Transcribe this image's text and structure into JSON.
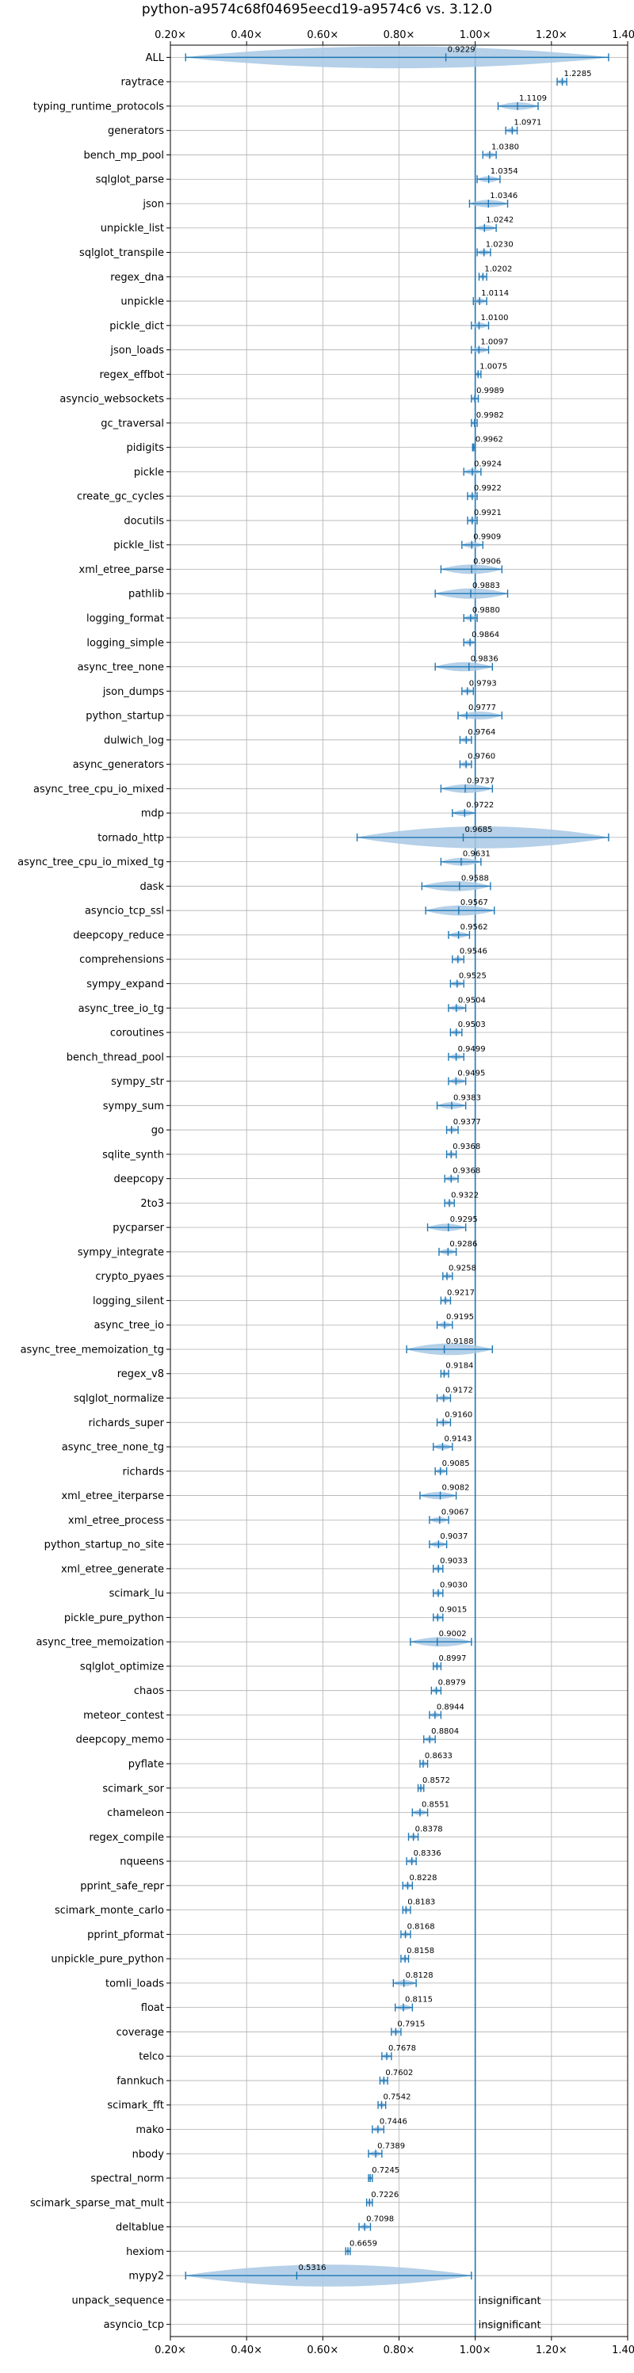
{
  "chart_data": {
    "type": "violin",
    "title": "python-a9574c68f04695eecd19-a9574c6 vs. 3.12.0",
    "xlim": [
      0.2,
      1.4
    ],
    "xticks": [
      0.2,
      0.4,
      0.6,
      0.8,
      1.0,
      1.2,
      1.4
    ],
    "xtick_labels": [
      "0.20×",
      "0.40×",
      "0.60×",
      "0.80×",
      "1.00×",
      "1.20×",
      "1.40×"
    ],
    "xtick_labels_top": [
      "0.20×",
      "0.40×",
      "0.60×",
      "0.80×",
      "1.00×",
      "1.20×",
      "1.40×"
    ],
    "reference_line": 1.0,
    "grid": true,
    "color": "#1f77b4",
    "fill_color": "#a8c8e4",
    "benchmarks": [
      {
        "name": "ALL",
        "median": 0.9229,
        "label": "0.9229",
        "min": 0.24,
        "max": 1.35
      },
      {
        "name": "raytrace",
        "median": 1.2285,
        "label": "1.2285",
        "min": 1.215,
        "max": 1.24
      },
      {
        "name": "typing_runtime_protocols",
        "median": 1.1109,
        "label": "1.1109",
        "min": 1.06,
        "max": 1.165
      },
      {
        "name": "generators",
        "median": 1.0971,
        "label": "1.0971",
        "min": 1.08,
        "max": 1.11
      },
      {
        "name": "bench_mp_pool",
        "median": 1.038,
        "label": "1.0380",
        "min": 1.02,
        "max": 1.055
      },
      {
        "name": "sqlglot_parse",
        "median": 1.0354,
        "label": "1.0354",
        "min": 1.005,
        "max": 1.065
      },
      {
        "name": "json",
        "median": 1.0346,
        "label": "1.0346",
        "min": 0.985,
        "max": 1.085
      },
      {
        "name": "unpickle_list",
        "median": 1.0242,
        "label": "1.0242",
        "min": 1.0,
        "max": 1.055
      },
      {
        "name": "sqlglot_transpile",
        "median": 1.023,
        "label": "1.0230",
        "min": 1.005,
        "max": 1.04
      },
      {
        "name": "regex_dna",
        "median": 1.0202,
        "label": "1.0202",
        "min": 1.01,
        "max": 1.03
      },
      {
        "name": "unpickle",
        "median": 1.0114,
        "label": "1.0114",
        "min": 0.995,
        "max": 1.03
      },
      {
        "name": "pickle_dict",
        "median": 1.01,
        "label": "1.0100",
        "min": 0.99,
        "max": 1.035
      },
      {
        "name": "json_loads",
        "median": 1.0097,
        "label": "1.0097",
        "min": 0.99,
        "max": 1.035
      },
      {
        "name": "regex_effbot",
        "median": 1.0075,
        "label": "1.0075",
        "min": 1.0,
        "max": 1.015
      },
      {
        "name": "asyncio_websockets",
        "median": 0.9989,
        "label": "0.9989",
        "min": 0.99,
        "max": 1.008
      },
      {
        "name": "gc_traversal",
        "median": 0.9982,
        "label": "0.9982",
        "min": 0.99,
        "max": 1.005
      },
      {
        "name": "pidigits",
        "median": 0.9962,
        "label": "0.9962",
        "min": 0.993,
        "max": 1.0
      },
      {
        "name": "pickle",
        "median": 0.9924,
        "label": "0.9924",
        "min": 0.97,
        "max": 1.015
      },
      {
        "name": "create_gc_cycles",
        "median": 0.9922,
        "label": "0.9922",
        "min": 0.98,
        "max": 1.005
      },
      {
        "name": "docutils",
        "median": 0.9921,
        "label": "0.9921",
        "min": 0.98,
        "max": 1.005
      },
      {
        "name": "pickle_list",
        "median": 0.9909,
        "label": "0.9909",
        "min": 0.965,
        "max": 1.02
      },
      {
        "name": "xml_etree_parse",
        "median": 0.9906,
        "label": "0.9906",
        "min": 0.91,
        "max": 1.07
      },
      {
        "name": "pathlib",
        "median": 0.9883,
        "label": "0.9883",
        "min": 0.895,
        "max": 1.085
      },
      {
        "name": "logging_format",
        "median": 0.988,
        "label": "0.9880",
        "min": 0.97,
        "max": 1.005
      },
      {
        "name": "logging_simple",
        "median": 0.9864,
        "label": "0.9864",
        "min": 0.97,
        "max": 1.0
      },
      {
        "name": "async_tree_none",
        "median": 0.9836,
        "label": "0.9836",
        "min": 0.895,
        "max": 1.045
      },
      {
        "name": "json_dumps",
        "median": 0.9793,
        "label": "0.9793",
        "min": 0.965,
        "max": 0.995
      },
      {
        "name": "python_startup",
        "median": 0.9777,
        "label": "0.9777",
        "min": 0.955,
        "max": 1.07
      },
      {
        "name": "dulwich_log",
        "median": 0.9764,
        "label": "0.9764",
        "min": 0.96,
        "max": 0.99
      },
      {
        "name": "async_generators",
        "median": 0.976,
        "label": "0.9760",
        "min": 0.96,
        "max": 0.99
      },
      {
        "name": "async_tree_cpu_io_mixed",
        "median": 0.9737,
        "label": "0.9737",
        "min": 0.91,
        "max": 1.045
      },
      {
        "name": "mdp",
        "median": 0.9722,
        "label": "0.9722",
        "min": 0.94,
        "max": 1.0
      },
      {
        "name": "tornado_http",
        "median": 0.9685,
        "label": "0.9685",
        "min": 0.69,
        "max": 1.35
      },
      {
        "name": "async_tree_cpu_io_mixed_tg",
        "median": 0.9631,
        "label": "0.9631",
        "min": 0.91,
        "max": 1.015
      },
      {
        "name": "dask",
        "median": 0.9588,
        "label": "0.9588",
        "min": 0.86,
        "max": 1.04
      },
      {
        "name": "asyncio_tcp_ssl",
        "median": 0.9567,
        "label": "0.9567",
        "min": 0.87,
        "max": 1.05
      },
      {
        "name": "deepcopy_reduce",
        "median": 0.9562,
        "label": "0.9562",
        "min": 0.93,
        "max": 0.985
      },
      {
        "name": "comprehensions",
        "median": 0.9546,
        "label": "0.9546",
        "min": 0.94,
        "max": 0.97
      },
      {
        "name": "sympy_expand",
        "median": 0.9525,
        "label": "0.9525",
        "min": 0.935,
        "max": 0.97
      },
      {
        "name": "async_tree_io_tg",
        "median": 0.9504,
        "label": "0.9504",
        "min": 0.93,
        "max": 0.975
      },
      {
        "name": "coroutines",
        "median": 0.9503,
        "label": "0.9503",
        "min": 0.935,
        "max": 0.965
      },
      {
        "name": "bench_thread_pool",
        "median": 0.9499,
        "label": "0.9499",
        "min": 0.93,
        "max": 0.97
      },
      {
        "name": "sympy_str",
        "median": 0.9495,
        "label": "0.9495",
        "min": 0.93,
        "max": 0.975
      },
      {
        "name": "sympy_sum",
        "median": 0.9383,
        "label": "0.9383",
        "min": 0.9,
        "max": 0.975
      },
      {
        "name": "go",
        "median": 0.9377,
        "label": "0.9377",
        "min": 0.925,
        "max": 0.955
      },
      {
        "name": "sqlite_synth",
        "median": 0.9368,
        "label": "0.9368",
        "min": 0.925,
        "max": 0.95
      },
      {
        "name": "deepcopy",
        "median": 0.9368,
        "label": "0.9368",
        "min": 0.92,
        "max": 0.955
      },
      {
        "name": "2to3",
        "median": 0.9322,
        "label": "0.9322",
        "min": 0.92,
        "max": 0.945
      },
      {
        "name": "pycparser",
        "median": 0.9295,
        "label": "0.9295",
        "min": 0.875,
        "max": 0.975
      },
      {
        "name": "sympy_integrate",
        "median": 0.9286,
        "label": "0.9286",
        "min": 0.905,
        "max": 0.95
      },
      {
        "name": "crypto_pyaes",
        "median": 0.9258,
        "label": "0.9258",
        "min": 0.915,
        "max": 0.94
      },
      {
        "name": "logging_silent",
        "median": 0.9217,
        "label": "0.9217",
        "min": 0.91,
        "max": 0.935
      },
      {
        "name": "async_tree_io",
        "median": 0.9195,
        "label": "0.9195",
        "min": 0.9,
        "max": 0.94
      },
      {
        "name": "async_tree_memoization_tg",
        "median": 0.9188,
        "label": "0.9188",
        "min": 0.82,
        "max": 1.045
      },
      {
        "name": "regex_v8",
        "median": 0.9184,
        "label": "0.9184",
        "min": 0.91,
        "max": 0.93
      },
      {
        "name": "sqlglot_normalize",
        "median": 0.9172,
        "label": "0.9172",
        "min": 0.9,
        "max": 0.935
      },
      {
        "name": "richards_super",
        "median": 0.916,
        "label": "0.9160",
        "min": 0.9,
        "max": 0.935
      },
      {
        "name": "async_tree_none_tg",
        "median": 0.9143,
        "label": "0.9143",
        "min": 0.89,
        "max": 0.94
      },
      {
        "name": "richards",
        "median": 0.9085,
        "label": "0.9085",
        "min": 0.895,
        "max": 0.925
      },
      {
        "name": "xml_etree_iterparse",
        "median": 0.9082,
        "label": "0.9082",
        "min": 0.855,
        "max": 0.95
      },
      {
        "name": "xml_etree_process",
        "median": 0.9067,
        "label": "0.9067",
        "min": 0.88,
        "max": 0.93
      },
      {
        "name": "python_startup_no_site",
        "median": 0.9037,
        "label": "0.9037",
        "min": 0.88,
        "max": 0.925
      },
      {
        "name": "xml_etree_generate",
        "median": 0.9033,
        "label": "0.9033",
        "min": 0.89,
        "max": 0.915
      },
      {
        "name": "scimark_lu",
        "median": 0.903,
        "label": "0.9030",
        "min": 0.89,
        "max": 0.915
      },
      {
        "name": "pickle_pure_python",
        "median": 0.9015,
        "label": "0.9015",
        "min": 0.89,
        "max": 0.915
      },
      {
        "name": "async_tree_memoization",
        "median": 0.9002,
        "label": "0.9002",
        "min": 0.83,
        "max": 0.99
      },
      {
        "name": "sqlglot_optimize",
        "median": 0.8997,
        "label": "0.8997",
        "min": 0.89,
        "max": 0.91
      },
      {
        "name": "chaos",
        "median": 0.8979,
        "label": "0.8979",
        "min": 0.885,
        "max": 0.91
      },
      {
        "name": "meteor_contest",
        "median": 0.8944,
        "label": "0.8944",
        "min": 0.88,
        "max": 0.91
      },
      {
        "name": "deepcopy_memo",
        "median": 0.8804,
        "label": "0.8804",
        "min": 0.865,
        "max": 0.895
      },
      {
        "name": "pyflate",
        "median": 0.8633,
        "label": "0.8633",
        "min": 0.855,
        "max": 0.875
      },
      {
        "name": "scimark_sor",
        "median": 0.8572,
        "label": "0.8572",
        "min": 0.85,
        "max": 0.865
      },
      {
        "name": "chameleon",
        "median": 0.8551,
        "label": "0.8551",
        "min": 0.835,
        "max": 0.875
      },
      {
        "name": "regex_compile",
        "median": 0.8378,
        "label": "0.8378",
        "min": 0.825,
        "max": 0.85
      },
      {
        "name": "nqueens",
        "median": 0.8336,
        "label": "0.8336",
        "min": 0.82,
        "max": 0.845
      },
      {
        "name": "pprint_safe_repr",
        "median": 0.8228,
        "label": "0.8228",
        "min": 0.81,
        "max": 0.835
      },
      {
        "name": "scimark_monte_carlo",
        "median": 0.8183,
        "label": "0.8183",
        "min": 0.81,
        "max": 0.83
      },
      {
        "name": "pprint_pformat",
        "median": 0.8168,
        "label": "0.8168",
        "min": 0.805,
        "max": 0.83
      },
      {
        "name": "unpickle_pure_python",
        "median": 0.8158,
        "label": "0.8158",
        "min": 0.805,
        "max": 0.825
      },
      {
        "name": "tomli_loads",
        "median": 0.8128,
        "label": "0.8128",
        "min": 0.785,
        "max": 0.845
      },
      {
        "name": "float",
        "median": 0.8115,
        "label": "0.8115",
        "min": 0.79,
        "max": 0.835
      },
      {
        "name": "coverage",
        "median": 0.7915,
        "label": "0.7915",
        "min": 0.78,
        "max": 0.805
      },
      {
        "name": "telco",
        "median": 0.7678,
        "label": "0.7678",
        "min": 0.755,
        "max": 0.78
      },
      {
        "name": "fannkuch",
        "median": 0.7602,
        "label": "0.7602",
        "min": 0.75,
        "max": 0.77
      },
      {
        "name": "scimark_fft",
        "median": 0.7542,
        "label": "0.7542",
        "min": 0.745,
        "max": 0.765
      },
      {
        "name": "mako",
        "median": 0.7446,
        "label": "0.7446",
        "min": 0.73,
        "max": 0.76
      },
      {
        "name": "nbody",
        "median": 0.7389,
        "label": "0.7389",
        "min": 0.72,
        "max": 0.755
      },
      {
        "name": "spectral_norm",
        "median": 0.7245,
        "label": "0.7245",
        "min": 0.72,
        "max": 0.73
      },
      {
        "name": "scimark_sparse_mat_mult",
        "median": 0.7226,
        "label": "0.7226",
        "min": 0.715,
        "max": 0.73
      },
      {
        "name": "deltablue",
        "median": 0.7098,
        "label": "0.7098",
        "min": 0.695,
        "max": 0.725
      },
      {
        "name": "hexiom",
        "median": 0.6659,
        "label": "0.6659",
        "min": 0.66,
        "max": 0.672
      },
      {
        "name": "mypy2",
        "median": 0.5316,
        "label": "0.5316",
        "min": 0.24,
        "max": 0.99
      },
      {
        "name": "unpack_sequence",
        "label": "insignificant"
      },
      {
        "name": "asyncio_tcp",
        "label": "insignificant"
      }
    ]
  }
}
